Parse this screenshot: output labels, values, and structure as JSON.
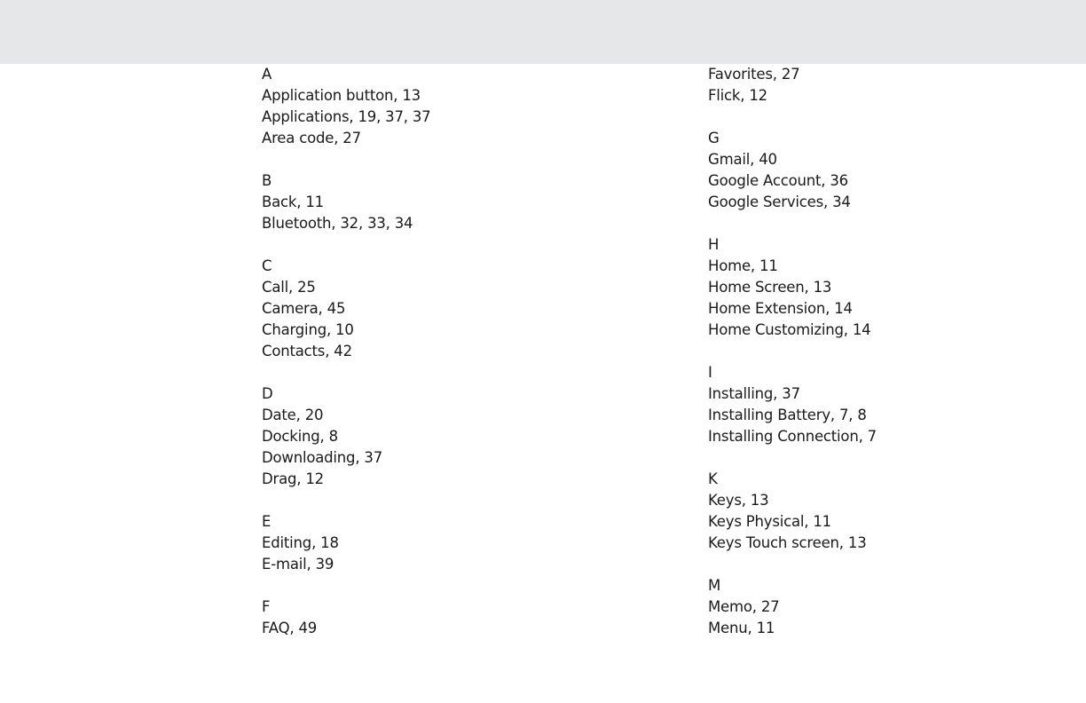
{
  "index": {
    "left_column": [
      {
        "letter": "A",
        "entries": [
          "Application button, 13",
          "Applications, 19, 37, 37",
          "Area code, 27"
        ]
      },
      {
        "letter": "B",
        "entries": [
          "Back, 11",
          "Bluetooth, 32, 33, 34"
        ]
      },
      {
        "letter": "C",
        "entries": [
          "Call, 25",
          "Camera, 45",
          "Charging, 10",
          "Contacts, 42"
        ]
      },
      {
        "letter": "D",
        "entries": [
          "Date, 20",
          "Docking, 8",
          "Downloading, 37",
          "Drag, 12"
        ]
      },
      {
        "letter": "E",
        "entries": [
          "Editing, 18",
          "E-mail, 39"
        ]
      },
      {
        "letter": "F",
        "entries": [
          "FAQ, 49"
        ]
      }
    ],
    "right_column": [
      {
        "letter": "",
        "entries": [
          "Favorites, 27",
          "Flick, 12"
        ]
      },
      {
        "letter": "G",
        "entries": [
          "Gmail, 40",
          "Google Account, 36",
          "Google Services, 34"
        ]
      },
      {
        "letter": "H",
        "entries": [
          "Home, 11",
          "Home Screen, 13",
          "Home Extension, 14",
          "Home Customizing, 14"
        ]
      },
      {
        "letter": "I",
        "entries": [
          "Installing, 37",
          "Installing Battery, 7, 8",
          "Installing Connection, 7"
        ]
      },
      {
        "letter": "K",
        "entries": [
          "Keys, 13",
          "Keys Physical, 11",
          "Keys Touch screen, 13"
        ]
      },
      {
        "letter": "M",
        "entries": [
          "Memo, 27",
          "Menu, 11"
        ]
      }
    ]
  }
}
